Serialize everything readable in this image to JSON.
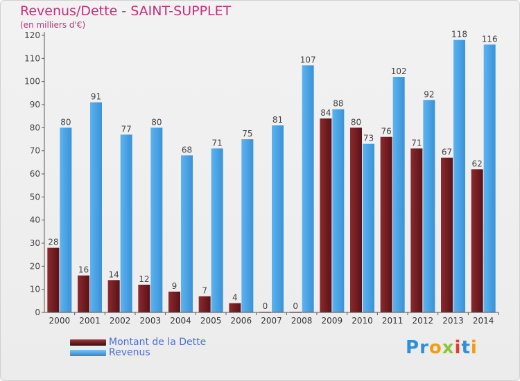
{
  "header": {
    "title": "Revenus/Dette - SAINT-SUPPLET",
    "subtitle": "(en milliers d'€)"
  },
  "colors": {
    "dette": "#7a1e22",
    "revenus": "#4da6e8",
    "title": "#c0307a",
    "legend_text": "#4a6fd0"
  },
  "chart_data": {
    "type": "bar",
    "categories": [
      "2000",
      "2001",
      "2002",
      "2003",
      "2004",
      "2005",
      "2006",
      "2007",
      "2008",
      "2009",
      "2010",
      "2011",
      "2012",
      "2013",
      "2014"
    ],
    "series": [
      {
        "name": "Montant de la Dette",
        "values": [
          28,
          16,
          14,
          12,
          9,
          7,
          4,
          0,
          0,
          84,
          80,
          76,
          71,
          67,
          62
        ]
      },
      {
        "name": "Revenus",
        "values": [
          80,
          91,
          77,
          80,
          68,
          71,
          75,
          81,
          107,
          88,
          73,
          102,
          92,
          118,
          116
        ]
      }
    ],
    "ylim": [
      0,
      120
    ],
    "yticks": [
      0,
      10,
      20,
      30,
      40,
      50,
      60,
      70,
      80,
      90,
      100,
      110,
      120
    ],
    "grid": false,
    "legend_position": "bottom-left"
  },
  "legend": {
    "items": [
      {
        "label": "Montant de la Dette"
      },
      {
        "label": "Revenus"
      }
    ]
  },
  "logo": {
    "text": "Proxiti",
    "letters": [
      "P",
      "r",
      "o",
      "x",
      "i",
      "t",
      "i"
    ],
    "letter_colors": [
      "#2f8fd8",
      "#2f8fd8",
      "#f39c12",
      "#8cc63f",
      "#e23a2e",
      "#2f8fd8",
      "#f39c12"
    ]
  }
}
